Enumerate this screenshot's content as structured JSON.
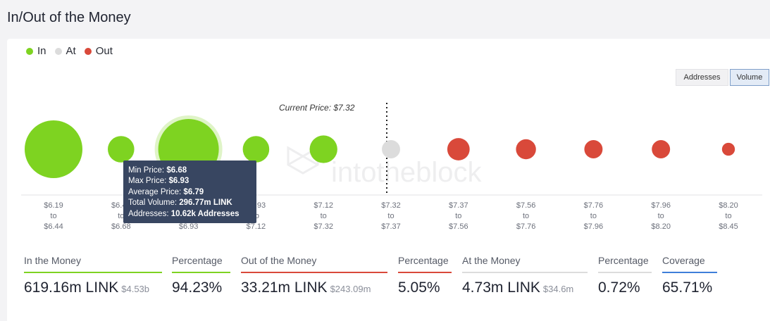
{
  "title": "In/Out of the Money",
  "legend": [
    {
      "label": "In",
      "color": "#7ed321"
    },
    {
      "label": "At",
      "color": "#dcdcdc"
    },
    {
      "label": "Out",
      "color": "#d9493a"
    }
  ],
  "toggles": {
    "addresses_label": "Addresses",
    "volume_label": "Volume",
    "active": "Volume"
  },
  "watermark": "intotheblock",
  "current_price_label": "Current Price: $7.32",
  "chart_data": {
    "type": "scatter",
    "measure": "Volume",
    "categories": [
      {
        "min": "$6.19",
        "max": "$6.44",
        "status": "In",
        "size": 1.0
      },
      {
        "min": "$6.44",
        "max": "$6.68",
        "status": "In",
        "size": 0.21
      },
      {
        "min": "$6.68",
        "max": "$6.93",
        "status": "In",
        "size": 1.1,
        "highlight": true
      },
      {
        "min": "$6.93",
        "max": "$7.12",
        "status": "In",
        "size": 0.21
      },
      {
        "min": "$7.12",
        "max": "$7.32",
        "status": "In",
        "size": 0.23
      },
      {
        "min": "$7.32",
        "max": "$7.37",
        "status": "At",
        "size": 0.1
      },
      {
        "min": "$7.37",
        "max": "$7.56",
        "status": "Out",
        "size": 0.15
      },
      {
        "min": "$7.56",
        "max": "$7.76",
        "status": "Out",
        "size": 0.12
      },
      {
        "min": "$7.76",
        "max": "$7.96",
        "status": "Out",
        "size": 0.1
      },
      {
        "min": "$7.96",
        "max": "$8.20",
        "status": "Out",
        "size": 0.1
      },
      {
        "min": "$8.20",
        "max": "$8.45",
        "status": "Out",
        "size": 0.05
      }
    ],
    "tick_connector": "to",
    "current_price": "$7.32",
    "current_price_index": 5,
    "colors": {
      "In": "#7ed321",
      "At": "#dcdcdc",
      "Out": "#d9493a"
    }
  },
  "tooltip": {
    "min_price_label": "Min Price:",
    "min_price": "$6.68",
    "max_price_label": "Max Price:",
    "max_price": "$6.93",
    "avg_price_label": "Average Price:",
    "avg_price": "$6.79",
    "volume_label": "Total Volume:",
    "volume": "296.77m LINK",
    "addresses_label": "Addresses:",
    "addresses": "10.62k Addresses"
  },
  "stats": [
    {
      "label": "In the Money",
      "value": "619.16m LINK",
      "sub": "$4.53b",
      "color": "#7ed321"
    },
    {
      "label": "Percentage",
      "value": "94.23%",
      "sub": "",
      "color": "#7ed321"
    },
    {
      "label": "Out of the Money",
      "value": "33.21m LINK",
      "sub": "$243.09m",
      "color": "#d9493a"
    },
    {
      "label": "Percentage",
      "value": "5.05%",
      "sub": "",
      "color": "#d9493a"
    },
    {
      "label": "At the Money",
      "value": "4.73m LINK",
      "sub": "$34.6m",
      "color": "#dcdcdc"
    },
    {
      "label": "Percentage",
      "value": "0.72%",
      "sub": "",
      "color": "#dcdcdc"
    },
    {
      "label": "Coverage",
      "value": "65.71%",
      "sub": "",
      "color": "#3f7fd9"
    }
  ]
}
